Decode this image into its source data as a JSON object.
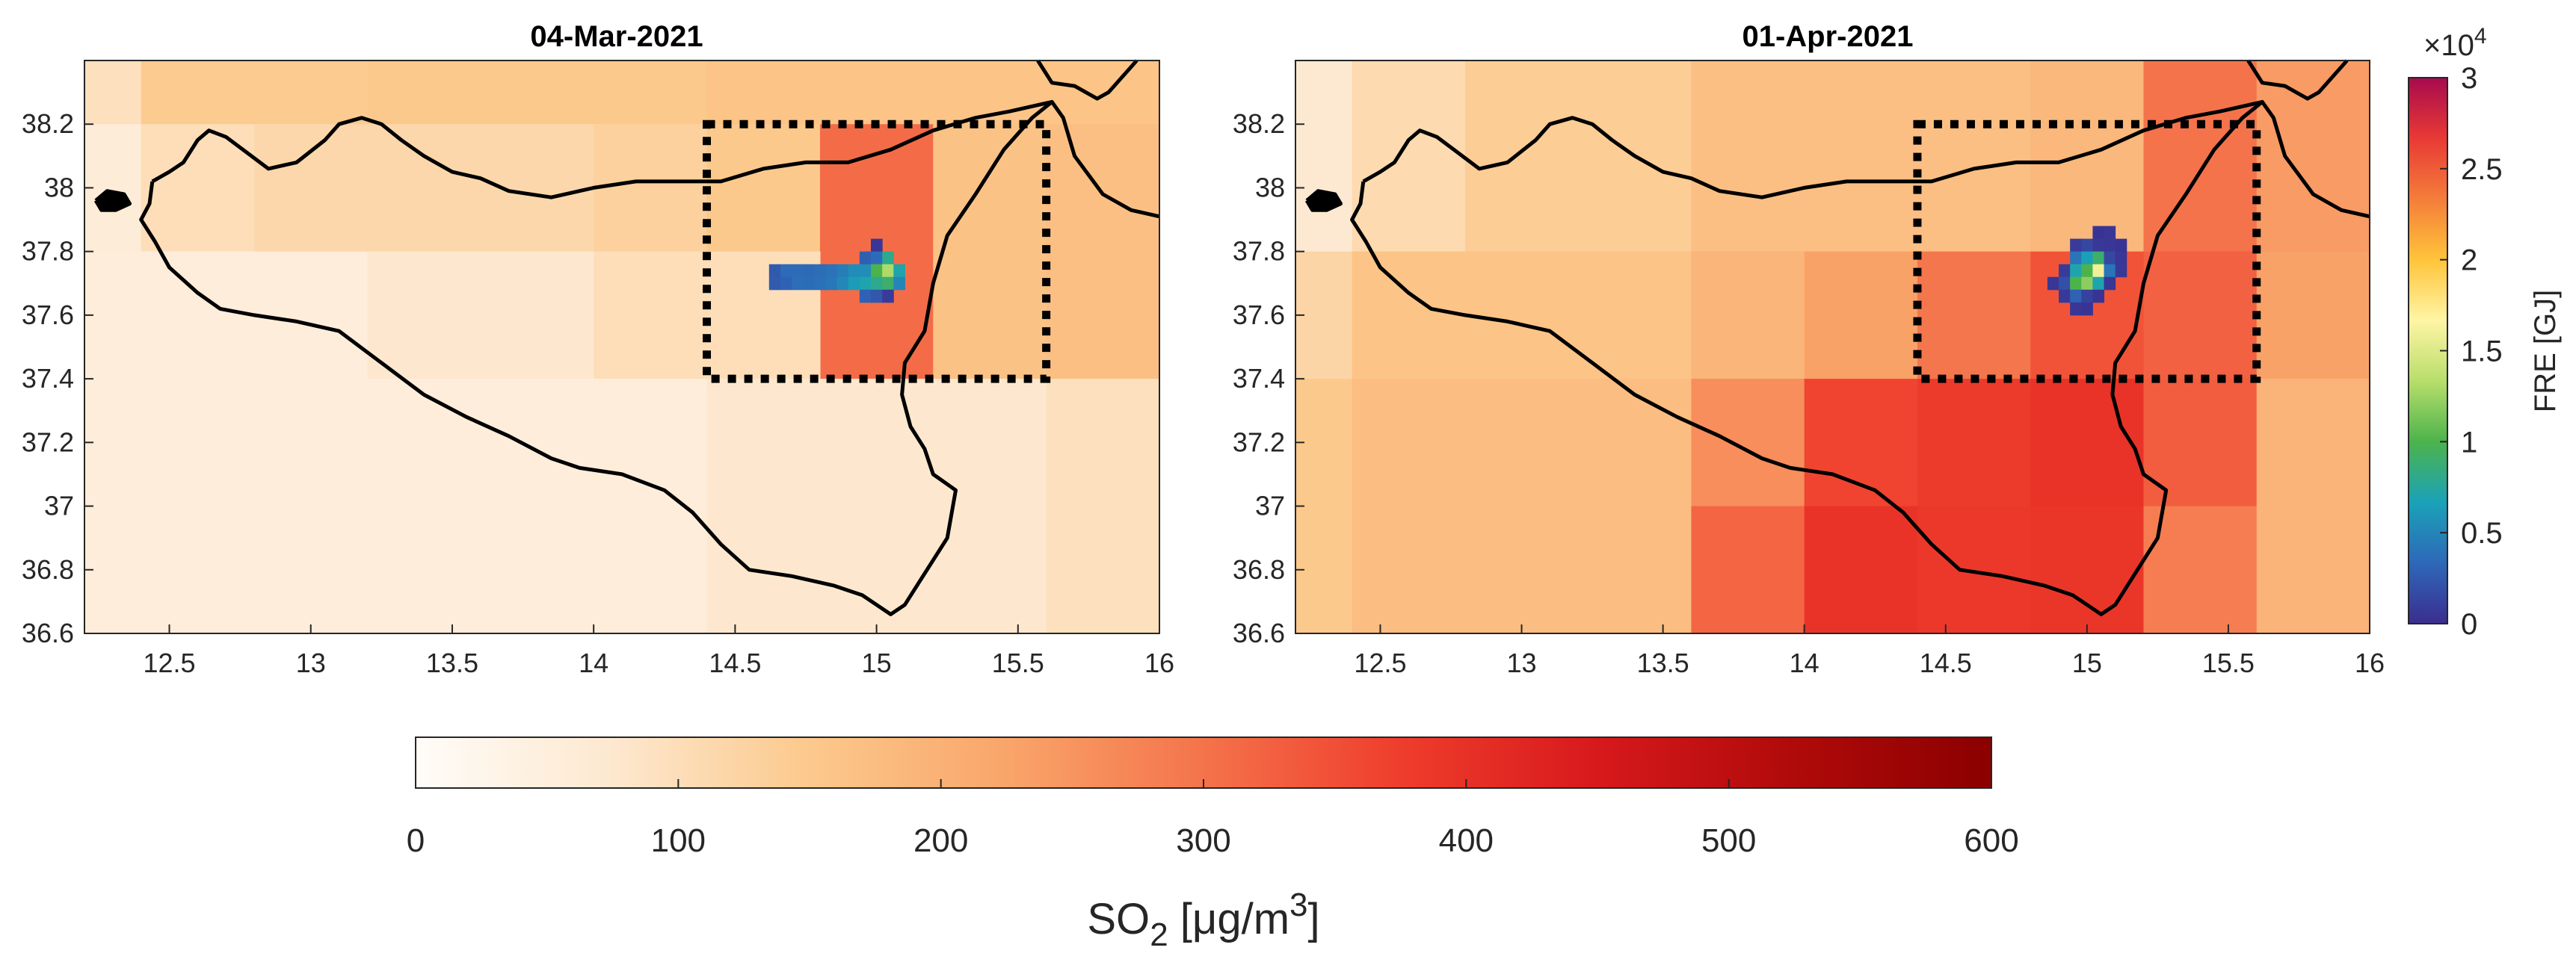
{
  "chart_data": [
    {
      "type": "heatmap",
      "title": "04-Mar-2021",
      "xlabel": "",
      "ylabel": "",
      "xlim": [
        12.2,
        16.0
      ],
      "ylim": [
        36.6,
        38.4
      ],
      "xticks": [
        "12.5",
        "13",
        "13.5",
        "14",
        "14.5",
        "15",
        "15.5",
        "16"
      ],
      "yticks": [
        "36.6",
        "36.8",
        "37",
        "37.2",
        "37.4",
        "37.6",
        "37.8",
        "38",
        "38.2"
      ],
      "so2_cells": [
        {
          "lon": [
            12.2,
            12.4
          ],
          "lat": [
            38.2,
            38.4
          ],
          "value": 95
        },
        {
          "lon": [
            12.4,
            13.2
          ],
          "lat": [
            38.2,
            38.4
          ],
          "value": 145
        },
        {
          "lon": [
            13.2,
            14.4
          ],
          "lat": [
            38.2,
            38.4
          ],
          "value": 150
        },
        {
          "lon": [
            14.4,
            16.0
          ],
          "lat": [
            38.2,
            38.4
          ],
          "value": 160
        },
        {
          "lon": [
            12.2,
            12.4
          ],
          "lat": [
            37.8,
            38.2
          ],
          "value": 60
        },
        {
          "lon": [
            12.4,
            12.8
          ],
          "lat": [
            37.8,
            38.2
          ],
          "value": 100
        },
        {
          "lon": [
            12.8,
            14.0
          ],
          "lat": [
            37.8,
            38.2
          ],
          "value": 115
        },
        {
          "lon": [
            14.0,
            14.4
          ],
          "lat": [
            37.8,
            38.2
          ],
          "value": 130
        },
        {
          "lon": [
            14.4,
            14.8
          ],
          "lat": [
            37.8,
            38.2
          ],
          "value": 150
        },
        {
          "lon": [
            14.8,
            15.2
          ],
          "lat": [
            37.4,
            38.2
          ],
          "value": 310
        },
        {
          "lon": [
            15.2,
            15.6
          ],
          "lat": [
            37.4,
            38.2
          ],
          "value": 165
        },
        {
          "lon": [
            15.6,
            16.0
          ],
          "lat": [
            37.4,
            38.2
          ],
          "value": 170
        },
        {
          "lon": [
            12.2,
            13.2
          ],
          "lat": [
            37.4,
            37.8
          ],
          "value": 55
        },
        {
          "lon": [
            13.2,
            14.0
          ],
          "lat": [
            37.4,
            37.8
          ],
          "value": 75
        },
        {
          "lon": [
            14.0,
            14.8
          ],
          "lat": [
            37.4,
            37.8
          ],
          "value": 100
        },
        {
          "lon": [
            12.2,
            14.4
          ],
          "lat": [
            36.6,
            37.4
          ],
          "value": 55
        },
        {
          "lon": [
            14.4,
            15.6
          ],
          "lat": [
            36.6,
            37.4
          ],
          "value": 75
        },
        {
          "lon": [
            15.6,
            16.0
          ],
          "lat": [
            36.6,
            37.4
          ],
          "value": 95
        }
      ],
      "fre_pixels": [
        {
          "lon": 14.64,
          "lat": 37.74,
          "value": 2500
        },
        {
          "lon": 14.64,
          "lat": 37.7,
          "value": 2600
        },
        {
          "lon": 14.68,
          "lat": 37.74,
          "value": 3500
        },
        {
          "lon": 14.68,
          "lat": 37.7,
          "value": 3000
        },
        {
          "lon": 14.72,
          "lat": 37.74,
          "value": 3500
        },
        {
          "lon": 14.72,
          "lat": 37.7,
          "value": 3700
        },
        {
          "lon": 14.76,
          "lat": 37.74,
          "value": 3400
        },
        {
          "lon": 14.76,
          "lat": 37.7,
          "value": 3600
        },
        {
          "lon": 14.8,
          "lat": 37.74,
          "value": 3600
        },
        {
          "lon": 14.8,
          "lat": 37.7,
          "value": 3800
        },
        {
          "lon": 14.84,
          "lat": 37.74,
          "value": 3900
        },
        {
          "lon": 14.84,
          "lat": 37.7,
          "value": 4200
        },
        {
          "lon": 14.88,
          "lat": 37.74,
          "value": 4600
        },
        {
          "lon": 14.88,
          "lat": 37.7,
          "value": 5200
        },
        {
          "lon": 14.92,
          "lat": 37.74,
          "value": 5400
        },
        {
          "lon": 14.92,
          "lat": 37.7,
          "value": 6300
        },
        {
          "lon": 14.96,
          "lat": 37.78,
          "value": 2800
        },
        {
          "lon": 14.96,
          "lat": 37.74,
          "value": 5500
        },
        {
          "lon": 14.96,
          "lat": 37.7,
          "value": 7000
        },
        {
          "lon": 14.96,
          "lat": 37.66,
          "value": 3000
        },
        {
          "lon": 15.0,
          "lat": 37.82,
          "value": 500
        },
        {
          "lon": 15.0,
          "lat": 37.78,
          "value": 3500
        },
        {
          "lon": 15.0,
          "lat": 37.74,
          "value": 10000
        },
        {
          "lon": 15.0,
          "lat": 37.7,
          "value": 8000
        },
        {
          "lon": 15.0,
          "lat": 37.66,
          "value": 2400
        },
        {
          "lon": 15.04,
          "lat": 37.78,
          "value": 8000
        },
        {
          "lon": 15.04,
          "lat": 37.74,
          "value": 13000
        },
        {
          "lon": 15.04,
          "lat": 37.7,
          "value": 9000
        },
        {
          "lon": 15.04,
          "lat": 37.66,
          "value": 800
        },
        {
          "lon": 15.08,
          "lat": 37.74,
          "value": 7000
        },
        {
          "lon": 15.08,
          "lat": 37.7,
          "value": 5000
        }
      ],
      "box": {
        "lon": [
          14.4,
          15.6
        ],
        "lat": [
          37.4,
          38.2
        ]
      }
    },
    {
      "type": "heatmap",
      "title": "01-Apr-2021",
      "xlabel": "",
      "ylabel": "",
      "xlim": [
        12.2,
        16.0
      ],
      "ylim": [
        36.6,
        38.4
      ],
      "xticks": [
        "12.5",
        "13",
        "13.5",
        "14",
        "14.5",
        "15",
        "15.5",
        "16"
      ],
      "yticks": [
        "36.6",
        "36.8",
        "37",
        "37.2",
        "37.4",
        "37.6",
        "37.8",
        "38",
        "38.2"
      ],
      "so2_cells": [
        {
          "lon": [
            12.2,
            12.4
          ],
          "lat": [
            37.8,
            38.4
          ],
          "value": 70
        },
        {
          "lon": [
            12.4,
            12.8
          ],
          "lat": [
            37.8,
            38.4
          ],
          "value": 110
        },
        {
          "lon": [
            12.8,
            13.6
          ],
          "lat": [
            37.8,
            38.4
          ],
          "value": 140
        },
        {
          "lon": [
            13.6,
            14.8
          ],
          "lat": [
            37.8,
            38.4
          ],
          "value": 170
        },
        {
          "lon": [
            14.8,
            15.2
          ],
          "lat": [
            37.8,
            38.4
          ],
          "value": 185
        },
        {
          "lon": [
            15.2,
            15.6
          ],
          "lat": [
            37.8,
            38.4
          ],
          "value": 300
        },
        {
          "lon": [
            15.6,
            16.0
          ],
          "lat": [
            37.8,
            38.4
          ],
          "value": 240
        },
        {
          "lon": [
            12.2,
            12.4
          ],
          "lat": [
            37.4,
            37.8
          ],
          "value": 120
        },
        {
          "lon": [
            12.4,
            13.6
          ],
          "lat": [
            37.4,
            37.8
          ],
          "value": 160
        },
        {
          "lon": [
            13.6,
            14.0
          ],
          "lat": [
            37.4,
            37.8
          ],
          "value": 190
        },
        {
          "lon": [
            14.0,
            14.4
          ],
          "lat": [
            37.4,
            37.8
          ],
          "value": 230
        },
        {
          "lon": [
            14.4,
            14.8
          ],
          "lat": [
            37.4,
            37.8
          ],
          "value": 295
        },
        {
          "lon": [
            14.8,
            15.2
          ],
          "lat": [
            37.4,
            37.8
          ],
          "value": 345
        },
        {
          "lon": [
            15.2,
            15.6
          ],
          "lat": [
            37.4,
            37.8
          ],
          "value": 325
        },
        {
          "lon": [
            15.6,
            16.0
          ],
          "lat": [
            37.4,
            37.8
          ],
          "value": 230
        },
        {
          "lon": [
            12.2,
            12.4
          ],
          "lat": [
            36.6,
            37.4
          ],
          "value": 150
        },
        {
          "lon": [
            12.4,
            13.6
          ],
          "lat": [
            36.6,
            37.4
          ],
          "value": 175
        },
        {
          "lon": [
            13.6,
            14.0
          ],
          "lat": [
            37.0,
            37.4
          ],
          "value": 260
        },
        {
          "lon": [
            13.6,
            14.0
          ],
          "lat": [
            36.6,
            37.0
          ],
          "value": 320
        },
        {
          "lon": [
            14.0,
            14.4
          ],
          "lat": [
            37.0,
            37.4
          ],
          "value": 365
        },
        {
          "lon": [
            14.0,
            14.4
          ],
          "lat": [
            36.6,
            37.0
          ],
          "value": 395
        },
        {
          "lon": [
            14.4,
            14.8
          ],
          "lat": [
            37.0,
            37.4
          ],
          "value": 380
        },
        {
          "lon": [
            14.4,
            14.8
          ],
          "lat": [
            36.6,
            37.0
          ],
          "value": 385
        },
        {
          "lon": [
            14.8,
            15.2
          ],
          "lat": [
            37.0,
            37.4
          ],
          "value": 395
        },
        {
          "lon": [
            14.8,
            15.2
          ],
          "lat": [
            36.6,
            37.0
          ],
          "value": 390
        },
        {
          "lon": [
            15.2,
            15.6
          ],
          "lat": [
            37.0,
            37.4
          ],
          "value": 330
        },
        {
          "lon": [
            15.2,
            15.6
          ],
          "lat": [
            36.6,
            37.0
          ],
          "value": 285
        },
        {
          "lon": [
            15.6,
            16.0
          ],
          "lat": [
            36.6,
            37.4
          ],
          "value": 195
        }
      ],
      "fre_pixels": [
        {
          "lon": 15.04,
          "lat": 37.86,
          "value": 400
        },
        {
          "lon": 15.08,
          "lat": 37.86,
          "value": 500
        },
        {
          "lon": 14.96,
          "lat": 37.82,
          "value": 800
        },
        {
          "lon": 15.0,
          "lat": 37.82,
          "value": 1500
        },
        {
          "lon": 15.04,
          "lat": 37.82,
          "value": 600
        },
        {
          "lon": 15.08,
          "lat": 37.82,
          "value": 500
        },
        {
          "lon": 15.12,
          "lat": 37.82,
          "value": 400
        },
        {
          "lon": 14.96,
          "lat": 37.78,
          "value": 4000
        },
        {
          "lon": 15.0,
          "lat": 37.78,
          "value": 6500
        },
        {
          "lon": 15.04,
          "lat": 37.78,
          "value": 9000
        },
        {
          "lon": 15.08,
          "lat": 37.78,
          "value": 1500
        },
        {
          "lon": 15.12,
          "lat": 37.78,
          "value": 500
        },
        {
          "lon": 14.92,
          "lat": 37.74,
          "value": 800
        },
        {
          "lon": 14.96,
          "lat": 37.74,
          "value": 7000
        },
        {
          "lon": 15.0,
          "lat": 37.74,
          "value": 10000
        },
        {
          "lon": 15.04,
          "lat": 37.74,
          "value": 16000
        },
        {
          "lon": 15.08,
          "lat": 37.74,
          "value": 4000
        },
        {
          "lon": 15.12,
          "lat": 37.74,
          "value": 600
        },
        {
          "lon": 14.88,
          "lat": 37.7,
          "value": 500
        },
        {
          "lon": 14.92,
          "lat": 37.7,
          "value": 2000
        },
        {
          "lon": 14.96,
          "lat": 37.7,
          "value": 10000
        },
        {
          "lon": 15.0,
          "lat": 37.7,
          "value": 12000
        },
        {
          "lon": 15.04,
          "lat": 37.7,
          "value": 7000
        },
        {
          "lon": 15.08,
          "lat": 37.7,
          "value": 500
        },
        {
          "lon": 14.92,
          "lat": 37.66,
          "value": 700
        },
        {
          "lon": 14.96,
          "lat": 37.66,
          "value": 3000
        },
        {
          "lon": 15.0,
          "lat": 37.66,
          "value": 1200
        },
        {
          "lon": 15.04,
          "lat": 37.66,
          "value": 400
        },
        {
          "lon": 14.96,
          "lat": 37.62,
          "value": 500
        },
        {
          "lon": 15.0,
          "lat": 37.62,
          "value": 400
        }
      ],
      "box": {
        "lon": [
          14.4,
          15.6
        ],
        "lat": [
          37.4,
          38.2
        ]
      }
    }
  ],
  "fre_colorbar": {
    "label": "FRE [GJ]",
    "exponent_label": "×10",
    "exponent": "4",
    "range": [
      0,
      30000
    ],
    "ticks": [
      "0",
      "0.5",
      "1",
      "1.5",
      "2",
      "2.5",
      "3"
    ],
    "colors": [
      "#3b2d8f",
      "#2e68b8",
      "#1aa2b8",
      "#4cb34c",
      "#b8de6b",
      "#fff5a5",
      "#ffc43a",
      "#f47d3a",
      "#e83a35",
      "#a80a4e"
    ]
  },
  "so2_colorbar": {
    "label_main": "SO",
    "label_sub": "2",
    "label_units": " [μg/m",
    "label_sup": "3",
    "label_close": "]",
    "range": [
      0,
      600
    ],
    "ticks": [
      "0",
      "100",
      "200",
      "300",
      "400",
      "500",
      "600"
    ],
    "colors": [
      "#fffcf8",
      "#fde8cf",
      "#fcc98c",
      "#f9a56a",
      "#f4734b",
      "#ef3d2c",
      "#d7191c",
      "#b00a0a",
      "#8b0000"
    ]
  },
  "coastline": [
    [
      12.44,
      38.02
    ],
    [
      12.5,
      38.05
    ],
    [
      12.55,
      38.08
    ],
    [
      12.6,
      38.15
    ],
    [
      12.64,
      38.18
    ],
    [
      12.7,
      38.16
    ],
    [
      12.76,
      38.12
    ],
    [
      12.85,
      38.06
    ],
    [
      12.95,
      38.08
    ],
    [
      13.05,
      38.15
    ],
    [
      13.1,
      38.2
    ],
    [
      13.18,
      38.22
    ],
    [
      13.25,
      38.2
    ],
    [
      13.32,
      38.15
    ],
    [
      13.4,
      38.1
    ],
    [
      13.5,
      38.05
    ],
    [
      13.6,
      38.03
    ],
    [
      13.7,
      37.99
    ],
    [
      13.85,
      37.97
    ],
    [
      14.0,
      38.0
    ],
    [
      14.15,
      38.02
    ],
    [
      14.3,
      38.02
    ],
    [
      14.45,
      38.02
    ],
    [
      14.6,
      38.06
    ],
    [
      14.75,
      38.08
    ],
    [
      14.9,
      38.08
    ],
    [
      15.05,
      38.12
    ],
    [
      15.2,
      38.18
    ],
    [
      15.35,
      38.22
    ],
    [
      15.47,
      38.24
    ],
    [
      15.62,
      38.27
    ],
    [
      15.55,
      38.22
    ],
    [
      15.45,
      38.12
    ],
    [
      15.35,
      37.98
    ],
    [
      15.25,
      37.85
    ],
    [
      15.2,
      37.7
    ],
    [
      15.17,
      37.55
    ],
    [
      15.1,
      37.45
    ],
    [
      15.09,
      37.35
    ],
    [
      15.12,
      37.25
    ],
    [
      15.17,
      37.18
    ],
    [
      15.2,
      37.1
    ],
    [
      15.28,
      37.05
    ],
    [
      15.25,
      36.9
    ],
    [
      15.15,
      36.76
    ],
    [
      15.1,
      36.69
    ],
    [
      15.05,
      36.66
    ],
    [
      14.95,
      36.72
    ],
    [
      14.85,
      36.75
    ],
    [
      14.7,
      36.78
    ],
    [
      14.55,
      36.8
    ],
    [
      14.45,
      36.88
    ],
    [
      14.35,
      36.98
    ],
    [
      14.25,
      37.05
    ],
    [
      14.1,
      37.1
    ],
    [
      13.95,
      37.12
    ],
    [
      13.85,
      37.15
    ],
    [
      13.7,
      37.22
    ],
    [
      13.55,
      37.28
    ],
    [
      13.4,
      37.35
    ],
    [
      13.25,
      37.45
    ],
    [
      13.1,
      37.55
    ],
    [
      12.95,
      37.58
    ],
    [
      12.8,
      37.6
    ],
    [
      12.68,
      37.62
    ],
    [
      12.6,
      37.67
    ],
    [
      12.5,
      37.75
    ],
    [
      12.45,
      37.83
    ],
    [
      12.4,
      37.9
    ],
    [
      12.43,
      37.95
    ],
    [
      12.44,
      38.02
    ]
  ],
  "calabria": [
    [
      15.62,
      38.27
    ],
    [
      15.66,
      38.22
    ],
    [
      15.7,
      38.1
    ],
    [
      15.8,
      37.98
    ],
    [
      15.9,
      37.93
    ],
    [
      16.0,
      37.91
    ]
  ],
  "calabria_north": [
    [
      15.57,
      38.4
    ],
    [
      15.62,
      38.33
    ],
    [
      15.7,
      38.32
    ],
    [
      15.78,
      38.28
    ],
    [
      15.82,
      38.3
    ],
    [
      15.9,
      38.38
    ],
    [
      15.92,
      38.4
    ]
  ],
  "island": [
    [
      12.24,
      37.96
    ],
    [
      12.28,
      37.99
    ],
    [
      12.34,
      37.98
    ],
    [
      12.36,
      37.95
    ],
    [
      12.31,
      37.93
    ],
    [
      12.26,
      37.93
    ],
    [
      12.24,
      37.96
    ]
  ]
}
